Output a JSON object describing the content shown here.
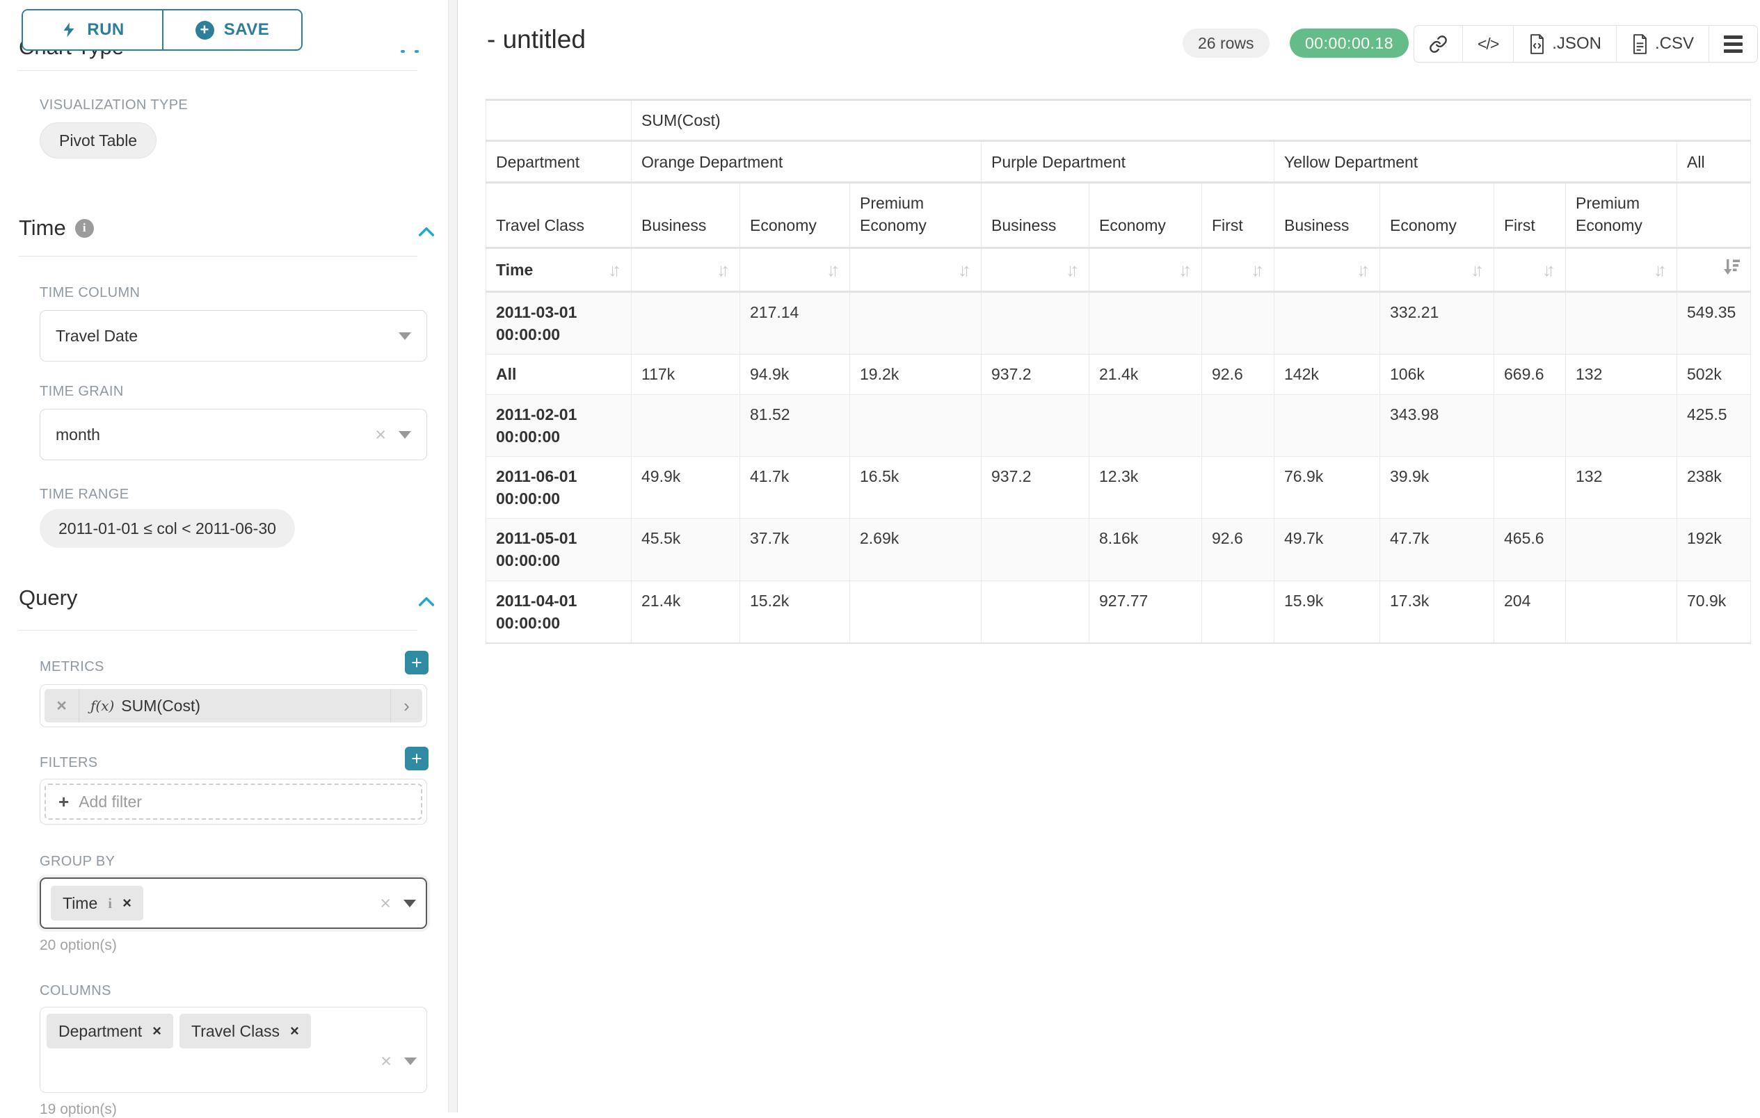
{
  "sidebar": {
    "run_label": "RUN",
    "save_label": "SAVE",
    "scrolled_section_title": "Chart Type",
    "viz_type": {
      "label": "VISUALIZATION TYPE",
      "value": "Pivot Table"
    },
    "time_section_title": "Time",
    "time_column": {
      "label": "TIME COLUMN",
      "value": "Travel Date"
    },
    "time_grain": {
      "label": "TIME GRAIN",
      "value": "month"
    },
    "time_range": {
      "label": "TIME RANGE",
      "value": "2011-01-01 ≤ col < 2011-06-30"
    },
    "query_section_title": "Query",
    "metrics": {
      "label": "METRICS",
      "item": {
        "prefix": "ƒ(x)",
        "name": "SUM(Cost)"
      }
    },
    "filters": {
      "label": "FILTERS",
      "placeholder": "Add filter"
    },
    "group_by": {
      "label": "GROUP BY",
      "tag": "Time",
      "hint": "20 option(s)"
    },
    "columns": {
      "label": "COLUMNS",
      "tag1": "Department",
      "tag2": "Travel Class",
      "hint": "19 option(s)"
    }
  },
  "header": {
    "title": "- untitled",
    "row_count": "26 rows",
    "timer": "00:00:00.18",
    "json_label": ".JSON",
    "csv_label": ".CSV"
  },
  "icons": {
    "sort_idle": "↓↑",
    "chevron_right": "›",
    "plus": "+",
    "close": "×",
    "info_letter": "i",
    "code": "</>"
  },
  "chart_data": {
    "type": "table",
    "metric_label": "SUM(Cost)",
    "dept_axis_label": "Department",
    "class_axis_label": "Travel Class",
    "row_axis_label": "Time",
    "all_label": "All",
    "dept_groups": [
      {
        "label": "Orange Department",
        "span": 3
      },
      {
        "label": "Purple Department",
        "span": 3
      },
      {
        "label": "Yellow Department",
        "span": 4
      }
    ],
    "class_headers": [
      "Business",
      "Economy",
      "Premium Economy",
      "Business",
      "Economy",
      "First",
      "Business",
      "Economy",
      "First",
      "Premium Economy"
    ],
    "rows": [
      {
        "time": "2011-03-01 00:00:00",
        "values": [
          "",
          "217.14",
          "",
          "",
          "",
          "",
          "",
          "332.21",
          "",
          "",
          "549.35"
        ]
      },
      {
        "time": "All",
        "values": [
          "117k",
          "94.9k",
          "19.2k",
          "937.2",
          "21.4k",
          "92.6",
          "142k",
          "106k",
          "669.6",
          "132",
          "502k"
        ]
      },
      {
        "time": "2011-02-01 00:00:00",
        "values": [
          "",
          "81.52",
          "",
          "",
          "",
          "",
          "",
          "343.98",
          "",
          "",
          "425.5"
        ]
      },
      {
        "time": "2011-06-01 00:00:00",
        "values": [
          "49.9k",
          "41.7k",
          "16.5k",
          "937.2",
          "12.3k",
          "",
          "76.9k",
          "39.9k",
          "",
          "132",
          "238k"
        ]
      },
      {
        "time": "2011-05-01 00:00:00",
        "values": [
          "45.5k",
          "37.7k",
          "2.69k",
          "",
          "8.16k",
          "92.6",
          "49.7k",
          "47.7k",
          "465.6",
          "",
          "192k"
        ]
      },
      {
        "time": "2011-04-01 00:00:00",
        "values": [
          "21.4k",
          "15.2k",
          "",
          "",
          "927.77",
          "",
          "15.9k",
          "17.3k",
          "204",
          "",
          "70.9k"
        ]
      }
    ]
  }
}
